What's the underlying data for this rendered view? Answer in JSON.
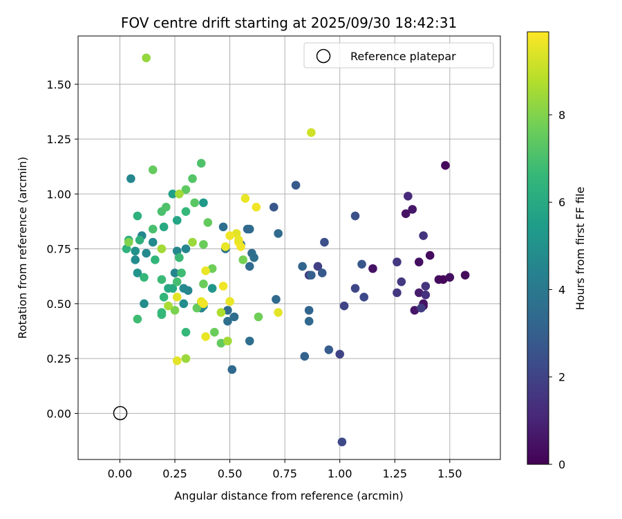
{
  "chart_data": {
    "type": "scatter",
    "title": "FOV centre drift starting at 2025/09/30 18:42:31",
    "xlabel": "Angular distance from reference (arcmin)",
    "ylabel": "Rotation from reference (arcmin)",
    "xlim": [
      -0.19,
      1.73
    ],
    "ylim": [
      -0.21,
      1.72
    ],
    "xticks": [
      0.0,
      0.25,
      0.5,
      0.75,
      1.0,
      1.25,
      1.5
    ],
    "xtick_labels": [
      "0.00",
      "0.25",
      "0.50",
      "0.75",
      "1.00",
      "1.25",
      "1.50"
    ],
    "yticks": [
      0.0,
      0.25,
      0.5,
      0.75,
      1.0,
      1.25,
      1.5
    ],
    "ytick_labels": [
      "0.00",
      "0.25",
      "0.50",
      "0.75",
      "1.00",
      "1.25",
      "1.50"
    ],
    "grid": true,
    "legend": {
      "position": "top-right",
      "label": "Reference platepar"
    },
    "reference_point": {
      "x": 0.0,
      "y": 0.0
    },
    "colorbar": {
      "label": "Hours from first FF file",
      "range": [
        0,
        9.9
      ],
      "ticks": [
        0,
        2,
        4,
        6,
        8
      ],
      "tick_labels": [
        "0",
        "2",
        "4",
        "6",
        "8"
      ],
      "colormap": [
        "#440154",
        "#482878",
        "#3e4989",
        "#31688e",
        "#26828e",
        "#1f9e89",
        "#35b779",
        "#6ece58",
        "#b5de2b",
        "#fde725"
      ]
    },
    "points": [
      {
        "x": 1.48,
        "y": 1.13,
        "h": 0.2
      },
      {
        "x": 1.3,
        "y": 0.91,
        "h": 0.5
      },
      {
        "x": 1.33,
        "y": 0.93,
        "h": 0.6
      },
      {
        "x": 1.31,
        "y": 0.99,
        "h": 1.2
      },
      {
        "x": 1.38,
        "y": 0.81,
        "h": 1.5
      },
      {
        "x": 1.36,
        "y": 0.69,
        "h": 0.4
      },
      {
        "x": 1.41,
        "y": 0.72,
        "h": 0.3
      },
      {
        "x": 1.15,
        "y": 0.66,
        "h": 0.5
      },
      {
        "x": 1.26,
        "y": 0.69,
        "h": 1.6
      },
      {
        "x": 1.28,
        "y": 0.6,
        "h": 1.7
      },
      {
        "x": 1.39,
        "y": 0.58,
        "h": 1.5
      },
      {
        "x": 1.45,
        "y": 0.61,
        "h": 0.3
      },
      {
        "x": 1.47,
        "y": 0.61,
        "h": 0.2
      },
      {
        "x": 1.5,
        "y": 0.62,
        "h": 0.4
      },
      {
        "x": 1.57,
        "y": 0.63,
        "h": 0.3
      },
      {
        "x": 1.36,
        "y": 0.55,
        "h": 0.8
      },
      {
        "x": 1.39,
        "y": 0.54,
        "h": 1.4
      },
      {
        "x": 1.26,
        "y": 0.55,
        "h": 1.6
      },
      {
        "x": 1.34,
        "y": 0.47,
        "h": 0.6
      },
      {
        "x": 1.38,
        "y": 0.49,
        "h": 0.4
      },
      {
        "x": 1.38,
        "y": 0.5,
        "h": 0.5
      },
      {
        "x": 1.37,
        "y": 0.48,
        "h": 1.8
      },
      {
        "x": 1.07,
        "y": 0.9,
        "h": 2.5
      },
      {
        "x": 1.1,
        "y": 0.68,
        "h": 2.7
      },
      {
        "x": 1.07,
        "y": 0.57,
        "h": 2.1
      },
      {
        "x": 1.11,
        "y": 0.53,
        "h": 2.2
      },
      {
        "x": 1.02,
        "y": 0.49,
        "h": 2.0
      },
      {
        "x": 0.93,
        "y": 0.78,
        "h": 2.4
      },
      {
        "x": 0.9,
        "y": 0.67,
        "h": 1.9
      },
      {
        "x": 0.86,
        "y": 0.63,
        "h": 1.8
      },
      {
        "x": 0.92,
        "y": 0.64,
        "h": 2.8
      },
      {
        "x": 0.87,
        "y": 0.63,
        "h": 3.0
      },
      {
        "x": 0.83,
        "y": 0.67,
        "h": 3.2
      },
      {
        "x": 0.8,
        "y": 1.04,
        "h": 2.8
      },
      {
        "x": 0.7,
        "y": 0.94,
        "h": 2.7
      },
      {
        "x": 0.72,
        "y": 0.82,
        "h": 3.4
      },
      {
        "x": 0.71,
        "y": 0.52,
        "h": 3.4
      },
      {
        "x": 0.86,
        "y": 0.47,
        "h": 3.2
      },
      {
        "x": 0.86,
        "y": 0.42,
        "h": 3.3
      },
      {
        "x": 0.84,
        "y": 0.26,
        "h": 3.1
      },
      {
        "x": 0.95,
        "y": 0.29,
        "h": 2.9
      },
      {
        "x": 1.0,
        "y": 0.27,
        "h": 2.0
      },
      {
        "x": 1.01,
        "y": -0.13,
        "h": 2.2
      },
      {
        "x": 0.59,
        "y": 0.84,
        "h": 3.5
      },
      {
        "x": 0.58,
        "y": 0.84,
        "h": 3.4
      },
      {
        "x": 0.47,
        "y": 0.85,
        "h": 3.6
      },
      {
        "x": 0.48,
        "y": 0.75,
        "h": 3.7
      },
      {
        "x": 0.55,
        "y": 0.77,
        "h": 3.5
      },
      {
        "x": 0.6,
        "y": 0.73,
        "h": 3.5
      },
      {
        "x": 0.61,
        "y": 0.71,
        "h": 3.6
      },
      {
        "x": 0.59,
        "y": 0.67,
        "h": 3.4
      },
      {
        "x": 0.59,
        "y": 0.33,
        "h": 3.6
      },
      {
        "x": 0.51,
        "y": 0.2,
        "h": 3.4
      },
      {
        "x": 0.52,
        "y": 0.44,
        "h": 3.5
      },
      {
        "x": 0.49,
        "y": 0.42,
        "h": 3.6
      },
      {
        "x": 0.49,
        "y": 0.47,
        "h": 3.5
      },
      {
        "x": 0.05,
        "y": 1.07,
        "h": 4.6
      },
      {
        "x": 0.07,
        "y": 0.7,
        "h": 4.8
      },
      {
        "x": 0.07,
        "y": 0.74,
        "h": 5.0
      },
      {
        "x": 0.12,
        "y": 0.73,
        "h": 4.7
      },
      {
        "x": 0.1,
        "y": 0.81,
        "h": 4.6
      },
      {
        "x": 0.15,
        "y": 0.78,
        "h": 4.7
      },
      {
        "x": 0.08,
        "y": 0.64,
        "h": 5.1
      },
      {
        "x": 0.11,
        "y": 0.5,
        "h": 4.8
      },
      {
        "x": 0.26,
        "y": 0.74,
        "h": 4.6
      },
      {
        "x": 0.3,
        "y": 0.75,
        "h": 4.5
      },
      {
        "x": 0.25,
        "y": 0.64,
        "h": 4.6
      },
      {
        "x": 0.29,
        "y": 0.57,
        "h": 4.7
      },
      {
        "x": 0.31,
        "y": 0.56,
        "h": 4.6
      },
      {
        "x": 0.29,
        "y": 0.5,
        "h": 4.8
      },
      {
        "x": 0.37,
        "y": 0.48,
        "h": 4.5
      },
      {
        "x": 0.38,
        "y": 0.49,
        "h": 4.6
      },
      {
        "x": 0.42,
        "y": 0.57,
        "h": 5.2
      },
      {
        "x": 0.37,
        "y": 0.5,
        "h": 5.5
      },
      {
        "x": 0.38,
        "y": 0.96,
        "h": 5.3
      },
      {
        "x": 0.24,
        "y": 1.0,
        "h": 5.6
      },
      {
        "x": 0.26,
        "y": 0.88,
        "h": 5.8
      },
      {
        "x": 0.2,
        "y": 0.85,
        "h": 6.0
      },
      {
        "x": 0.22,
        "y": 0.57,
        "h": 5.9
      },
      {
        "x": 0.24,
        "y": 0.57,
        "h": 6.0
      },
      {
        "x": 0.08,
        "y": 0.9,
        "h": 6.3
      },
      {
        "x": 0.03,
        "y": 0.75,
        "h": 6.4
      },
      {
        "x": 0.04,
        "y": 0.79,
        "h": 6.2
      },
      {
        "x": 0.09,
        "y": 0.79,
        "h": 6.3
      },
      {
        "x": 0.16,
        "y": 0.7,
        "h": 6.5
      },
      {
        "x": 0.11,
        "y": 0.62,
        "h": 6.6
      },
      {
        "x": 0.19,
        "y": 0.61,
        "h": 6.7
      },
      {
        "x": 0.2,
        "y": 0.53,
        "h": 6.5
      },
      {
        "x": 0.19,
        "y": 0.45,
        "h": 6.7
      },
      {
        "x": 0.19,
        "y": 0.46,
        "h": 6.6
      },
      {
        "x": 0.08,
        "y": 0.43,
        "h": 6.8
      },
      {
        "x": 0.3,
        "y": 0.37,
        "h": 6.6
      },
      {
        "x": 0.26,
        "y": 0.6,
        "h": 6.9
      },
      {
        "x": 0.28,
        "y": 0.64,
        "h": 6.8
      },
      {
        "x": 0.27,
        "y": 0.71,
        "h": 6.7
      },
      {
        "x": 0.3,
        "y": 0.92,
        "h": 6.6
      },
      {
        "x": 0.19,
        "y": 0.92,
        "h": 7.0
      },
      {
        "x": 0.21,
        "y": 0.94,
        "h": 7.1
      },
      {
        "x": 0.15,
        "y": 0.84,
        "h": 7.0
      },
      {
        "x": 0.37,
        "y": 1.14,
        "h": 7.1
      },
      {
        "x": 0.33,
        "y": 1.07,
        "h": 7.2
      },
      {
        "x": 0.34,
        "y": 0.96,
        "h": 7.3
      },
      {
        "x": 0.3,
        "y": 1.02,
        "h": 7.4
      },
      {
        "x": 0.4,
        "y": 0.87,
        "h": 7.5
      },
      {
        "x": 0.38,
        "y": 0.77,
        "h": 7.6
      },
      {
        "x": 0.42,
        "y": 0.66,
        "h": 7.7
      },
      {
        "x": 0.38,
        "y": 0.59,
        "h": 7.6
      },
      {
        "x": 0.35,
        "y": 0.48,
        "h": 7.5
      },
      {
        "x": 0.43,
        "y": 0.37,
        "h": 7.6
      },
      {
        "x": 0.46,
        "y": 0.32,
        "h": 7.5
      },
      {
        "x": 0.56,
        "y": 0.7,
        "h": 7.8
      },
      {
        "x": 0.63,
        "y": 0.44,
        "h": 7.7
      },
      {
        "x": 0.15,
        "y": 1.11,
        "h": 7.5
      },
      {
        "x": 0.04,
        "y": 0.78,
        "h": 8.0
      },
      {
        "x": 0.25,
        "y": 0.47,
        "h": 7.9
      },
      {
        "x": 0.12,
        "y": 1.62,
        "h": 8.3
      },
      {
        "x": 0.27,
        "y": 1.0,
        "h": 8.5
      },
      {
        "x": 0.33,
        "y": 0.78,
        "h": 8.4
      },
      {
        "x": 0.19,
        "y": 0.75,
        "h": 8.5
      },
      {
        "x": 0.22,
        "y": 0.49,
        "h": 8.6
      },
      {
        "x": 0.3,
        "y": 0.25,
        "h": 8.4
      },
      {
        "x": 0.46,
        "y": 0.46,
        "h": 8.7
      },
      {
        "x": 0.49,
        "y": 0.33,
        "h": 8.5
      },
      {
        "x": 0.87,
        "y": 1.28,
        "h": 9.2
      },
      {
        "x": 0.57,
        "y": 0.98,
        "h": 9.6
      },
      {
        "x": 0.62,
        "y": 0.94,
        "h": 9.7
      },
      {
        "x": 0.53,
        "y": 0.82,
        "h": 9.5
      },
      {
        "x": 0.48,
        "y": 0.76,
        "h": 9.6
      },
      {
        "x": 0.5,
        "y": 0.81,
        "h": 9.7
      },
      {
        "x": 0.54,
        "y": 0.78,
        "h": 9.8
      },
      {
        "x": 0.55,
        "y": 0.76,
        "h": 9.7
      },
      {
        "x": 0.54,
        "y": 0.79,
        "h": 9.6
      },
      {
        "x": 0.39,
        "y": 0.65,
        "h": 9.6
      },
      {
        "x": 0.47,
        "y": 0.58,
        "h": 9.7
      },
      {
        "x": 0.26,
        "y": 0.53,
        "h": 9.5
      },
      {
        "x": 0.37,
        "y": 0.51,
        "h": 9.6
      },
      {
        "x": 0.38,
        "y": 0.5,
        "h": 9.7
      },
      {
        "x": 0.5,
        "y": 0.51,
        "h": 9.6
      },
      {
        "x": 0.72,
        "y": 0.46,
        "h": 9.5
      },
      {
        "x": 0.39,
        "y": 0.35,
        "h": 9.6
      },
      {
        "x": 0.26,
        "y": 0.24,
        "h": 9.5
      }
    ]
  }
}
